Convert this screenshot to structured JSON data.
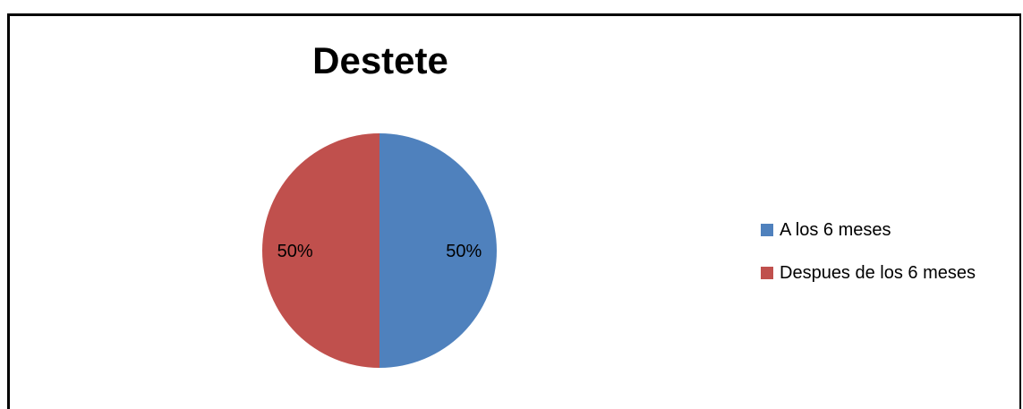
{
  "chart_data": {
    "type": "pie",
    "title": "Destete",
    "categories": [
      "A los 6 meses",
      "Despues de los 6 meses"
    ],
    "values": [
      50,
      50
    ],
    "data_labels": [
      "50%",
      "50%"
    ],
    "colors": [
      "#4f81bd",
      "#c0504d"
    ],
    "legend_position": "right"
  }
}
